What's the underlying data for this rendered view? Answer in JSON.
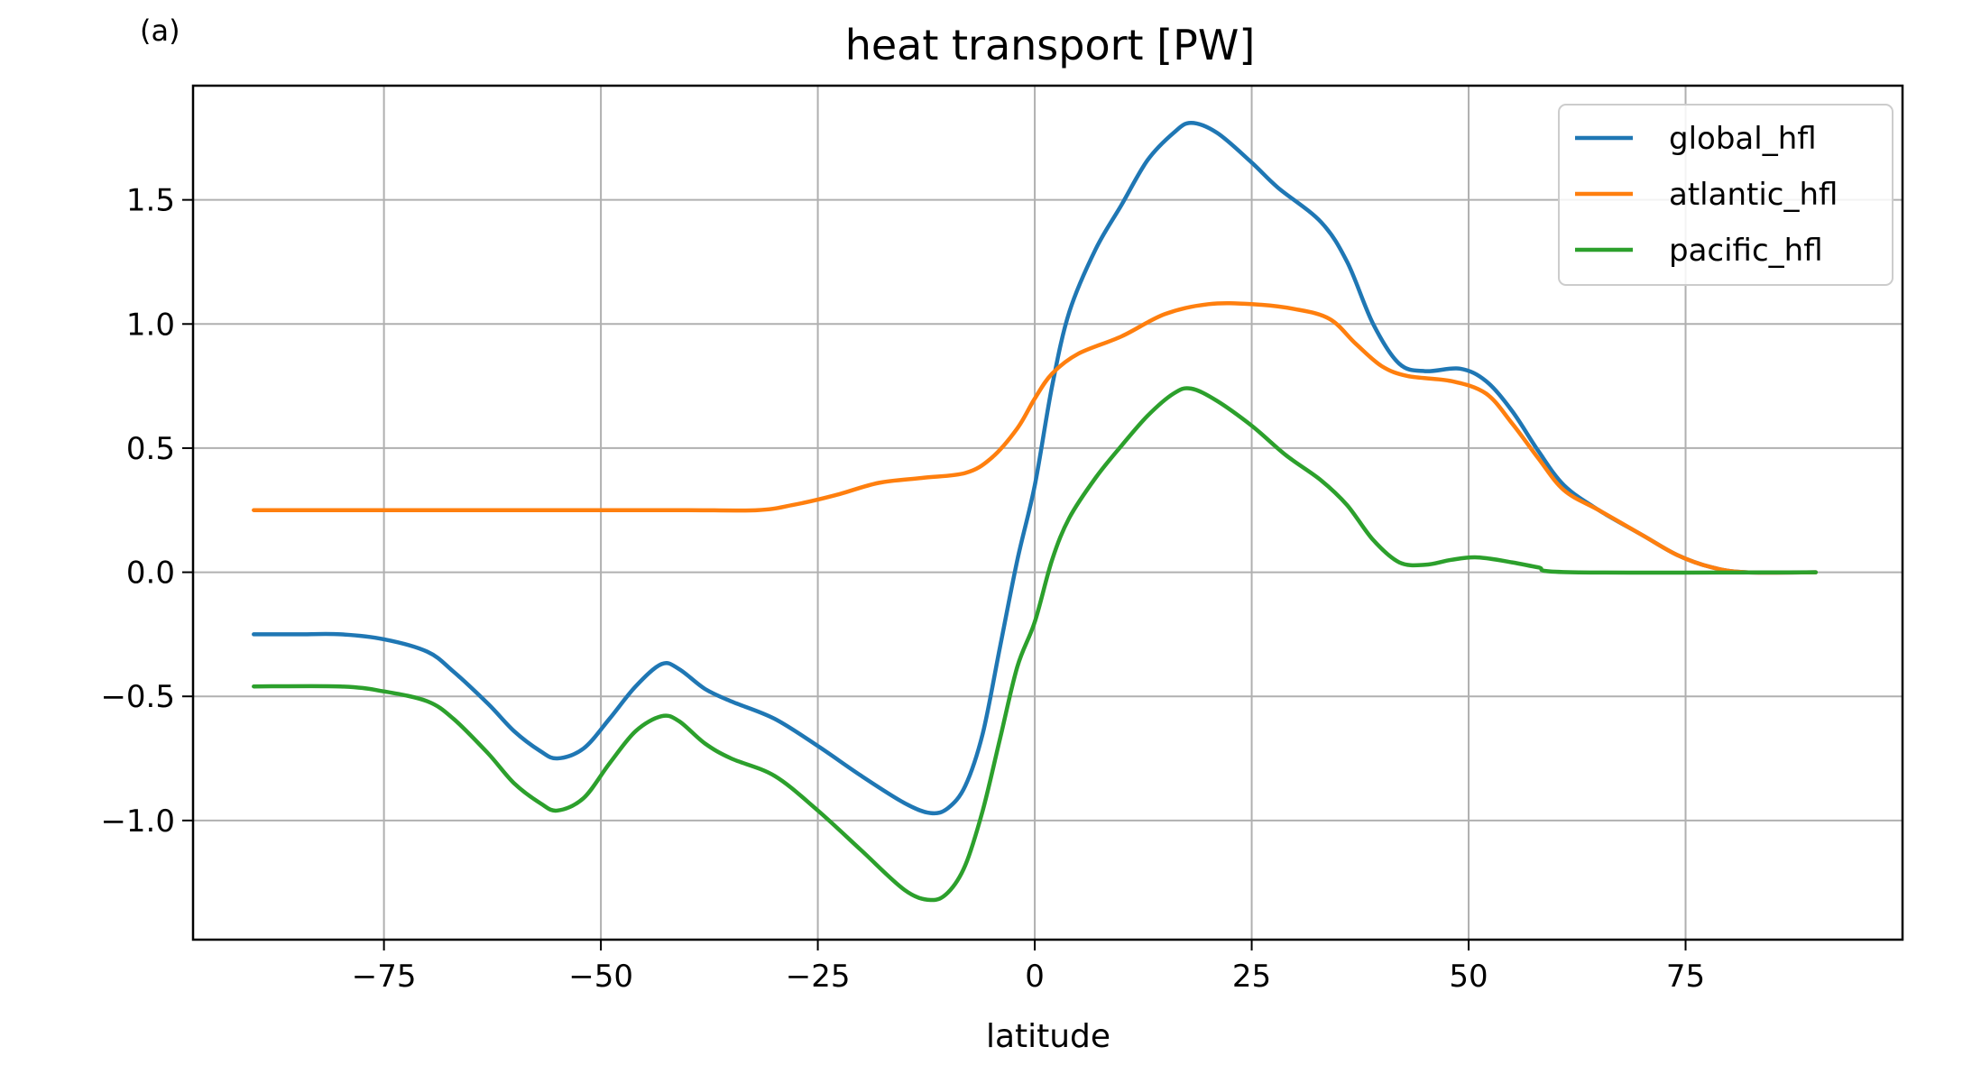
{
  "chart_data": {
    "type": "line",
    "panel_label": "(a)",
    "title": "heat transport [PW]",
    "xlabel": "latitude",
    "ylabel": "",
    "xlim": [
      -97,
      100
    ],
    "ylim": [
      -1.48,
      1.96
    ],
    "xticks": [
      -75,
      -50,
      -25,
      0,
      25,
      50,
      75
    ],
    "xtick_labels": [
      "−75",
      "−50",
      "−25",
      "0",
      "25",
      "50",
      "75"
    ],
    "yticks": [
      -1.0,
      -0.5,
      0.0,
      0.5,
      1.0,
      1.5
    ],
    "ytick_labels": [
      "−1.0",
      "−0.5",
      "0.0",
      "0.5",
      "1.0",
      "1.5"
    ],
    "grid": true,
    "legend_position": "top-right",
    "series": [
      {
        "name": "global_hfl",
        "color": "#1f77b4",
        "points": [
          [
            -90,
            -0.25
          ],
          [
            -85,
            -0.25
          ],
          [
            -80,
            -0.25
          ],
          [
            -75,
            -0.27
          ],
          [
            -70,
            -0.32
          ],
          [
            -67,
            -0.4
          ],
          [
            -63,
            -0.53
          ],
          [
            -60,
            -0.64
          ],
          [
            -57,
            -0.72
          ],
          [
            -55,
            -0.75
          ],
          [
            -52,
            -0.71
          ],
          [
            -49,
            -0.59
          ],
          [
            -46,
            -0.46
          ],
          [
            -43,
            -0.37
          ],
          [
            -41,
            -0.39
          ],
          [
            -38,
            -0.47
          ],
          [
            -35,
            -0.52
          ],
          [
            -30,
            -0.59
          ],
          [
            -25,
            -0.7
          ],
          [
            -20,
            -0.82
          ],
          [
            -15,
            -0.93
          ],
          [
            -12,
            -0.97
          ],
          [
            -10,
            -0.95
          ],
          [
            -8,
            -0.86
          ],
          [
            -6,
            -0.65
          ],
          [
            -4,
            -0.3
          ],
          [
            -2,
            0.05
          ],
          [
            0,
            0.35
          ],
          [
            2,
            0.75
          ],
          [
            4,
            1.05
          ],
          [
            7,
            1.3
          ],
          [
            10,
            1.48
          ],
          [
            13,
            1.66
          ],
          [
            16,
            1.77
          ],
          [
            18,
            1.81
          ],
          [
            21,
            1.77
          ],
          [
            25,
            1.65
          ],
          [
            28,
            1.55
          ],
          [
            33,
            1.41
          ],
          [
            36,
            1.25
          ],
          [
            39,
            1.0
          ],
          [
            42,
            0.84
          ],
          [
            45,
            0.81
          ],
          [
            49,
            0.82
          ],
          [
            52,
            0.77
          ],
          [
            55,
            0.65
          ],
          [
            58,
            0.49
          ],
          [
            61,
            0.35
          ],
          [
            65,
            0.25
          ],
          [
            70,
            0.15
          ],
          [
            74,
            0.07
          ],
          [
            78,
            0.02
          ],
          [
            82,
            0.0
          ],
          [
            90,
            0.0
          ]
        ]
      },
      {
        "name": "atlantic_hfl",
        "color": "#ff7f0e",
        "points": [
          [
            -90,
            0.25
          ],
          [
            -80,
            0.25
          ],
          [
            -70,
            0.25
          ],
          [
            -60,
            0.25
          ],
          [
            -50,
            0.25
          ],
          [
            -40,
            0.25
          ],
          [
            -32,
            0.25
          ],
          [
            -28,
            0.27
          ],
          [
            -23,
            0.31
          ],
          [
            -18,
            0.36
          ],
          [
            -13,
            0.38
          ],
          [
            -8,
            0.4
          ],
          [
            -5,
            0.46
          ],
          [
            -2,
            0.58
          ],
          [
            0,
            0.7
          ],
          [
            2,
            0.8
          ],
          [
            5,
            0.88
          ],
          [
            10,
            0.95
          ],
          [
            15,
            1.04
          ],
          [
            20,
            1.08
          ],
          [
            25,
            1.08
          ],
          [
            30,
            1.06
          ],
          [
            34,
            1.02
          ],
          [
            37,
            0.92
          ],
          [
            40,
            0.83
          ],
          [
            43,
            0.79
          ],
          [
            48,
            0.77
          ],
          [
            52,
            0.72
          ],
          [
            55,
            0.6
          ],
          [
            58,
            0.46
          ],
          [
            61,
            0.33
          ],
          [
            65,
            0.25
          ],
          [
            70,
            0.15
          ],
          [
            74,
            0.07
          ],
          [
            78,
            0.02
          ],
          [
            82,
            0.0
          ],
          [
            90,
            0.0
          ]
        ]
      },
      {
        "name": "pacific_hfl",
        "color": "#2ca02c",
        "points": [
          [
            -90,
            -0.46
          ],
          [
            -80,
            -0.46
          ],
          [
            -75,
            -0.48
          ],
          [
            -70,
            -0.52
          ],
          [
            -67,
            -0.59
          ],
          [
            -63,
            -0.73
          ],
          [
            -60,
            -0.85
          ],
          [
            -57,
            -0.93
          ],
          [
            -55,
            -0.96
          ],
          [
            -52,
            -0.91
          ],
          [
            -49,
            -0.77
          ],
          [
            -46,
            -0.64
          ],
          [
            -43,
            -0.58
          ],
          [
            -41,
            -0.6
          ],
          [
            -38,
            -0.69
          ],
          [
            -35,
            -0.75
          ],
          [
            -30,
            -0.82
          ],
          [
            -25,
            -0.96
          ],
          [
            -20,
            -1.12
          ],
          [
            -15,
            -1.28
          ],
          [
            -12,
            -1.32
          ],
          [
            -10,
            -1.29
          ],
          [
            -8,
            -1.18
          ],
          [
            -6,
            -0.96
          ],
          [
            -4,
            -0.67
          ],
          [
            -2,
            -0.38
          ],
          [
            0,
            -0.2
          ],
          [
            2,
            0.05
          ],
          [
            4,
            0.22
          ],
          [
            7,
            0.38
          ],
          [
            10,
            0.51
          ],
          [
            13,
            0.63
          ],
          [
            16,
            0.72
          ],
          [
            18,
            0.74
          ],
          [
            21,
            0.69
          ],
          [
            25,
            0.59
          ],
          [
            29,
            0.47
          ],
          [
            33,
            0.37
          ],
          [
            36,
            0.27
          ],
          [
            39,
            0.13
          ],
          [
            42,
            0.04
          ],
          [
            45,
            0.03
          ],
          [
            48,
            0.05
          ],
          [
            51,
            0.06
          ],
          [
            55,
            0.04
          ],
          [
            58,
            0.02
          ],
          [
            62,
            0.0
          ],
          [
            90,
            0.0
          ]
        ]
      }
    ]
  }
}
